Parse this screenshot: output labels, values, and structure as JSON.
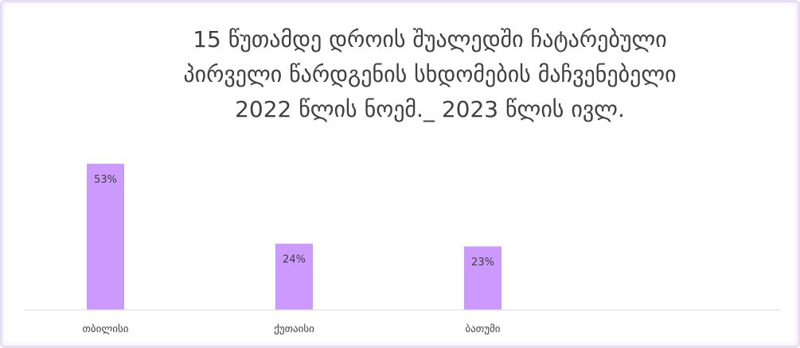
{
  "chart_data": {
    "type": "bar",
    "title_lines": [
      "15 წუთამდე დროის შუალედში ჩატარებული",
      "პირველი წარდგენის სხდომების მაჩვენებელი",
      "2022 წლის ნოემ._ 2023 წლის ივლ."
    ],
    "categories": [
      "თბილისი",
      "ქუთაისი",
      "ბათუმი"
    ],
    "values": [
      53,
      24,
      23
    ],
    "data_labels": [
      "53%",
      "24%",
      "23%"
    ],
    "ylim": [
      0,
      60
    ],
    "grid": false,
    "legend": "none",
    "bar_color": "#cc99ff",
    "axis_color": "#d9d9d9"
  }
}
